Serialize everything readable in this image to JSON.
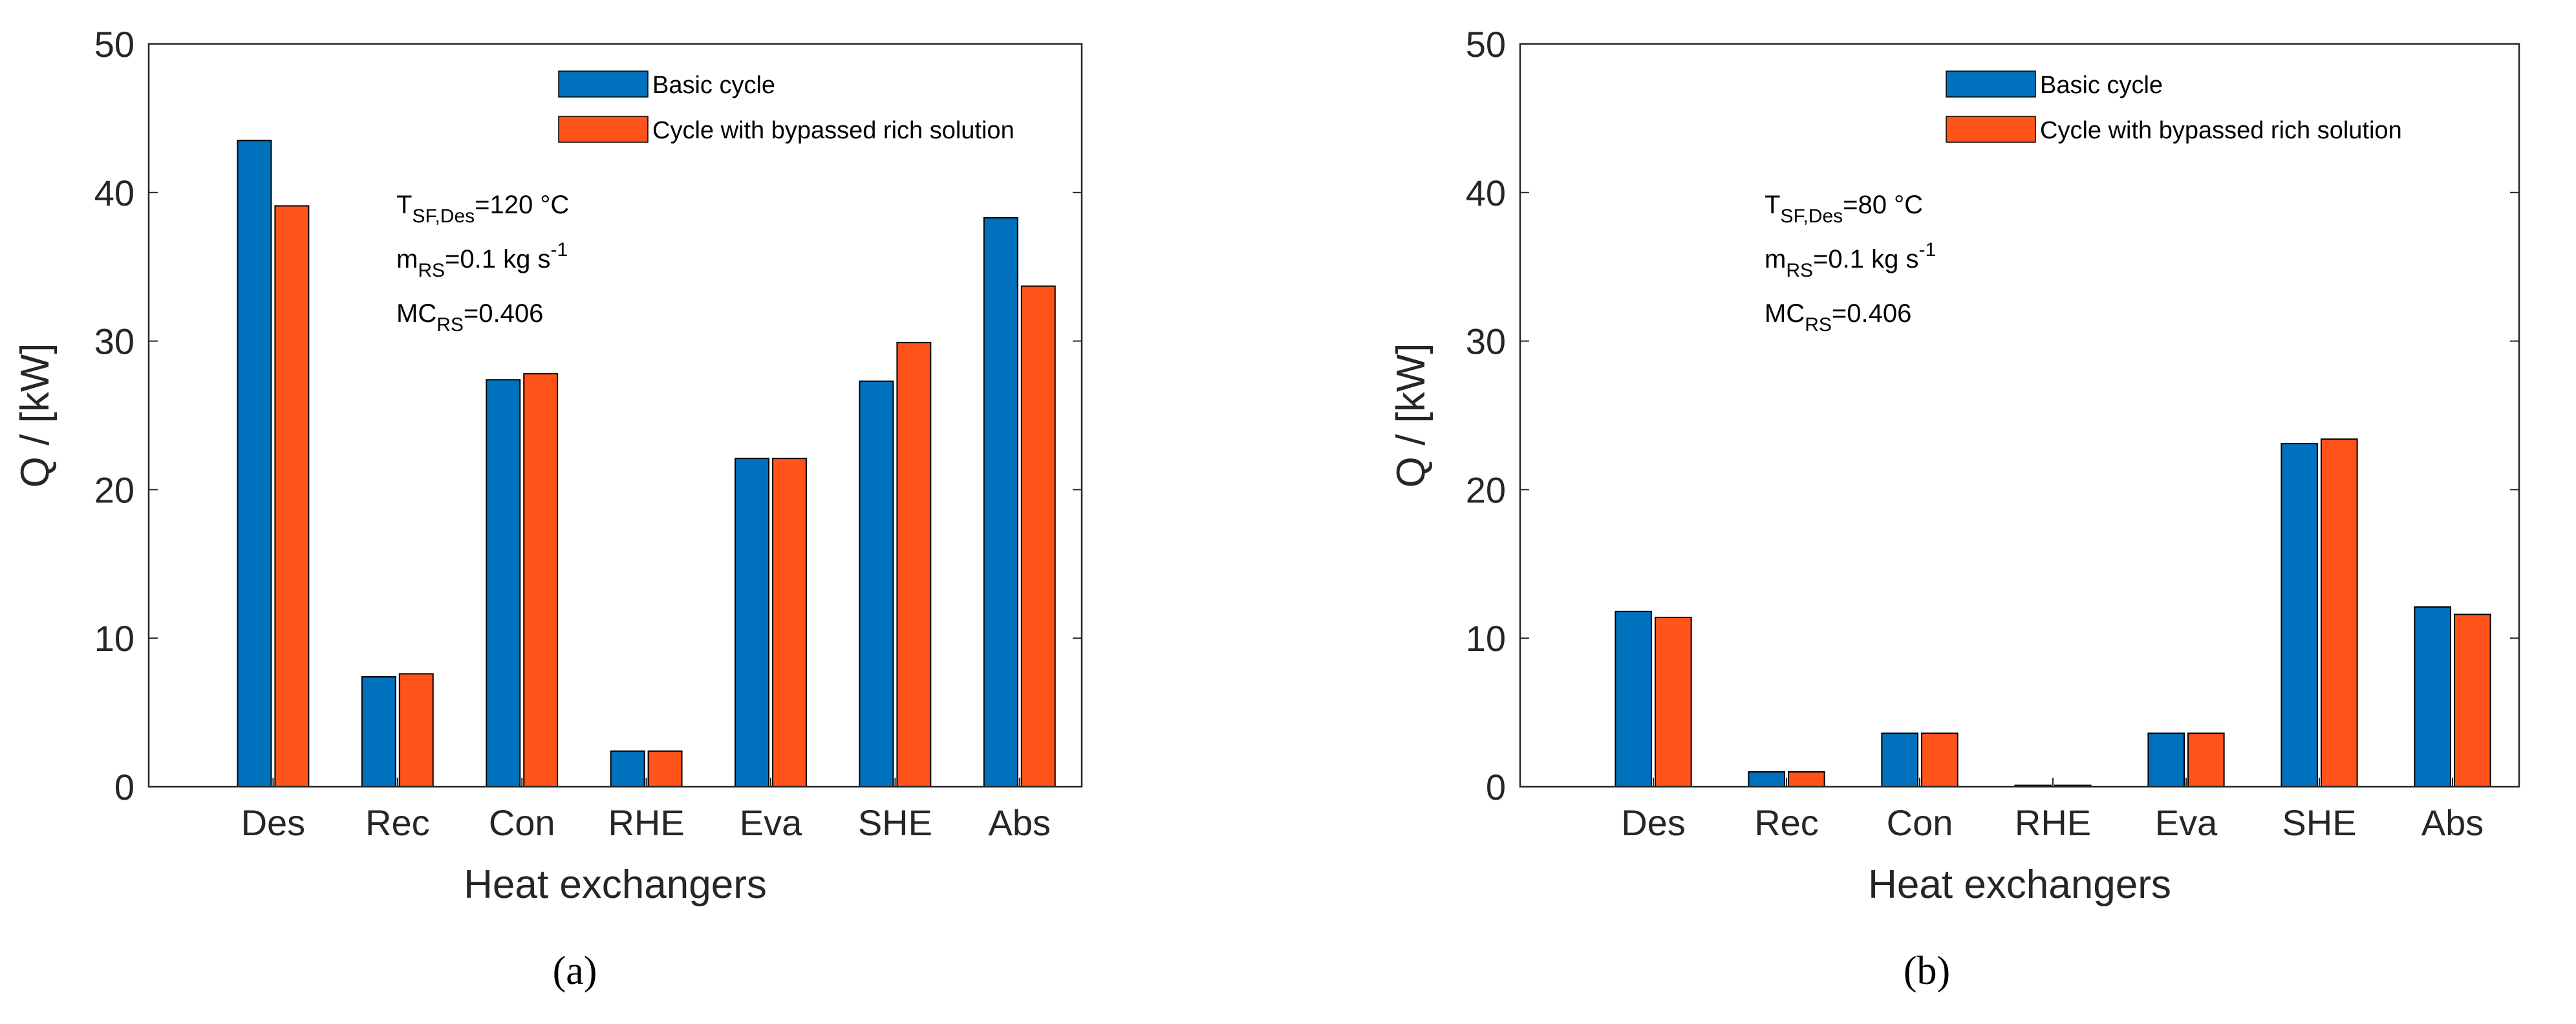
{
  "chart_data": [
    {
      "type": "bar",
      "panel_label": "(a)",
      "x_label": "Heat exchangers",
      "y_label": "Q / [kW]",
      "categories": [
        "Des",
        "Rec",
        "Con",
        "RHE",
        "Eva",
        "SHE",
        "Abs"
      ],
      "series": [
        {
          "name": "Basic cycle",
          "color": "#0072BD",
          "values": [
            43.5,
            7.4,
            27.4,
            2.4,
            22.1,
            27.3,
            38.3
          ]
        },
        {
          "name": "Cycle with bypassed rich solution",
          "color": "#FF5319",
          "values": [
            39.1,
            7.6,
            27.8,
            2.4,
            22.1,
            29.9,
            33.7
          ]
        }
      ],
      "ylim": [
        0,
        50
      ],
      "yticks": [
        0,
        10,
        20,
        30,
        40,
        50
      ],
      "annotations": [
        {
          "main": "T",
          "sub": "SF,Des",
          "after": "=120 °C"
        },
        {
          "main": "m",
          "sub": "RS",
          "after": "=0.1 kg s",
          "sup": "-1"
        },
        {
          "main": "MC",
          "sub": "RS",
          "after": "=0.406"
        }
      ]
    },
    {
      "type": "bar",
      "panel_label": "(b)",
      "x_label": "Heat exchangers",
      "y_label": "Q / [kW]",
      "categories": [
        "Des",
        "Rec",
        "Con",
        "RHE",
        "Eva",
        "SHE",
        "Abs"
      ],
      "series": [
        {
          "name": "Basic cycle",
          "color": "#0072BD",
          "values": [
            11.8,
            1.0,
            3.6,
            0.1,
            3.6,
            23.1,
            12.1
          ]
        },
        {
          "name": "Cycle with bypassed rich solution",
          "color": "#FF5319",
          "values": [
            11.4,
            1.0,
            3.6,
            0.1,
            3.6,
            23.4,
            11.6
          ]
        }
      ],
      "ylim": [
        0,
        50
      ],
      "yticks": [
        0,
        10,
        20,
        30,
        40,
        50
      ],
      "annotations": [
        {
          "main": "T",
          "sub": "SF,Des",
          "after": "=80 °C"
        },
        {
          "main": "m",
          "sub": "RS",
          "after": "=0.1 kg s",
          "sup": "-1"
        },
        {
          "main": "MC",
          "sub": "RS",
          "after": "=0.406"
        }
      ]
    }
  ]
}
